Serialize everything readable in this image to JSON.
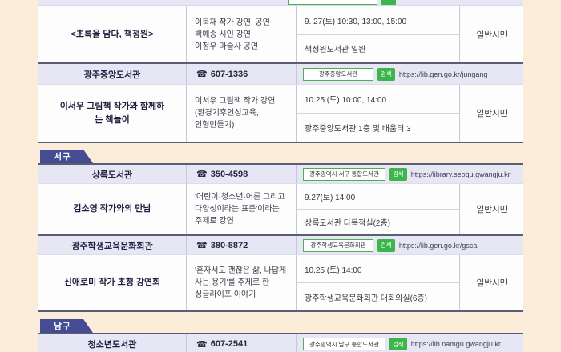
{
  "icons": {
    "phone": "☎"
  },
  "search_action_label": "검색",
  "districts": {
    "top": {
      "blocks": [
        {
          "events": [
            {
              "title": "<초록을 담다, 책정원>",
              "desc_lines": [
                "이묵재 작가 강연, 공연",
                "백예송 시인 강연",
                "이정우 마술사 공연"
              ],
              "datetime": "9. 27(토) 10:30, 13:00, 15:00",
              "place": "책정원도서관 일원",
              "target": "일반시민"
            }
          ]
        },
        {
          "library": {
            "name": "광주중앙도서관",
            "phone": "607-1336",
            "search_text": "광주중앙도서관",
            "url": "https://lib.gen.go.kr/jungang"
          },
          "events": [
            {
              "title": "이서우 그림책 작가와 함께하는 책놀이",
              "desc_lines": [
                "이서우 그림책 작가 강연",
                "(환경기후인성교육,",
                "인형만들기)"
              ],
              "datetime": "10.25 (토) 10:00, 14:00",
              "place": "광주중앙도서관 1층 및 배움터 3",
              "target": "일반시민"
            }
          ]
        }
      ]
    },
    "seogu": {
      "label": "서구",
      "blocks": [
        {
          "library": {
            "name": "상록도서관",
            "phone": "350-4598",
            "search_text": "광주광역시 서구 통합도서관",
            "url": "https://library.seogu.gwangju.kr"
          },
          "events": [
            {
              "title": "김소영 작가와의 만남",
              "desc_lines": [
                "'어린이·청소년·어른 그리고",
                "다양성이라는 표준'이라는",
                "주제로 강연"
              ],
              "datetime": "9.27(토) 14:00",
              "place": "상록도서관 다목적실(2층)",
              "target": "일반시민"
            }
          ]
        },
        {
          "library": {
            "name": "광주학생교육문화회관",
            "phone": "380-8872",
            "search_text": "광주학생교육문화회관",
            "url": "https://lib.gen.go.kr/gsca"
          },
          "events": [
            {
              "title": "신애로미 작가 초청 강연회",
              "desc_lines": [
                "'혼자서도 괜찮은 삶, 나답게",
                "사는 용기'를 주제로 한",
                "싱글라이프 이야기"
              ],
              "datetime": "10.25 (토) 14:00",
              "place": "광주학생교육문화회관 대회의실(6층)",
              "target": "일반시민"
            }
          ]
        }
      ]
    },
    "namgu": {
      "label": "남구",
      "blocks": [
        {
          "library": {
            "name": "청소년도서관",
            "phone": "607-2541",
            "search_text": "광주광역시 남구 통합도서관",
            "url": "https://lib.namgu.gwangju.kr"
          },
          "events": []
        }
      ]
    }
  }
}
